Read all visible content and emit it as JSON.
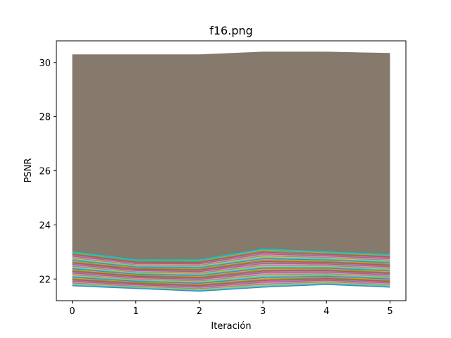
{
  "chart_data": {
    "type": "line",
    "title": "f16.png",
    "xlabel": "Iteración",
    "ylabel": "PSNR",
    "x": [
      0,
      1,
      2,
      3,
      4,
      5
    ],
    "xticks": [
      "0",
      "1",
      "2",
      "3",
      "4",
      "5"
    ],
    "yticks": [
      "22",
      "24",
      "26",
      "28",
      "30"
    ],
    "xlim": [
      -0.25,
      5.25
    ],
    "ylim": [
      21.2,
      30.8
    ],
    "grid": false,
    "legend": "none",
    "band": {
      "color": "#857a6b",
      "top": [
        30.3,
        30.3,
        30.3,
        30.4,
        30.4,
        30.35
      ],
      "bottom": [
        23.0,
        22.7,
        22.7,
        23.1,
        23.0,
        22.9
      ]
    },
    "lower_band": {
      "top": [
        23.0,
        22.7,
        22.7,
        23.1,
        23.0,
        22.9
      ],
      "bottom": [
        21.75,
        21.65,
        21.55,
        21.7,
        21.8,
        21.7
      ]
    },
    "highlight_series": {
      "color": "#17becf",
      "values": [
        23.0,
        22.7,
        22.7,
        23.1,
        23.0,
        22.9
      ]
    },
    "palette": [
      "#1f77b4",
      "#ff7f0e",
      "#2ca02c",
      "#d62728",
      "#9467bd",
      "#8c564b",
      "#e377c2",
      "#7f7f7f",
      "#bcbd22",
      "#17becf"
    ]
  }
}
